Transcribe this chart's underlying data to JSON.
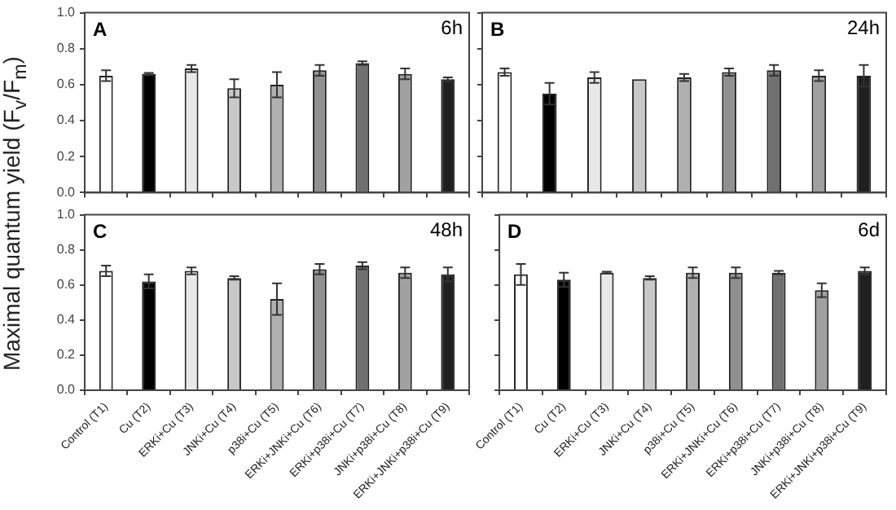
{
  "chart_data": [
    {
      "type": "bar",
      "ylabel": "Maximal quantum yield (F$_{v}$/F$_{m}$)",
      "annotations": [
        "A",
        "6h"
      ],
      "categories": [
        "Control (T1)",
        "Cu (T2)",
        "ERKi+Cu (T3)",
        "JNKi+Cu (T4)",
        "p38i+Cu (T5)",
        "ERKi+JNKi+Cu (T6)",
        "ERKi+p38i+Cu (T7)",
        "JNKi+p38i+Cu (T8)",
        "ERKi+JNKi+p38i+Cu (T9)"
      ],
      "values": [
        0.65,
        0.66,
        0.69,
        0.58,
        0.6,
        0.68,
        0.72,
        0.66,
        0.63
      ],
      "errors": [
        0.03,
        0.005,
        0.02,
        0.05,
        0.07,
        0.03,
        0.01,
        0.03,
        0.01
      ],
      "colors": [
        "#ffffff",
        "#000000",
        "#e8e8e8",
        "#c8c8c8",
        "#b0b0b0",
        "#909090",
        "#707070",
        "#a0a0a0",
        "#202020"
      ],
      "ylim": [
        0,
        1
      ],
      "yticks": [
        {
          "value": 0,
          "label": "0.0"
        },
        {
          "value": 0.2,
          "label": "0.2"
        },
        {
          "value": 0.4,
          "label": "0.4"
        },
        {
          "value": 0.6,
          "label": "0.6"
        },
        {
          "value": 0.8,
          "label": "0.8"
        },
        {
          "value": 1,
          "label": "1.0"
        }
      ],
      "tick_labels": "y",
      "legend": false
    },
    {
      "type": "bar",
      "annotations": [
        "B",
        "24h"
      ],
      "categories": [
        "Control (T1)",
        "Cu (T2)",
        "ERKi+Cu (T3)",
        "JNKi+Cu (T4)",
        "p38i+Cu (T5)",
        "ERKi+JNKi+Cu (T6)",
        "ERKi+p38i+Cu (T7)",
        "JNKi+p38i+Cu (T8)",
        "ERKi+JNKi+p38i+Cu (T9)"
      ],
      "values": [
        0.67,
        0.55,
        0.64,
        0.63,
        0.64,
        0.67,
        0.68,
        0.65,
        0.65
      ],
      "errors": [
        0.02,
        0.06,
        0.03,
        null,
        0.02,
        0.02,
        0.03,
        0.03,
        0.06
      ],
      "colors": [
        "#ffffff",
        "#000000",
        "#e8e8e8",
        "#c8c8c8",
        "#b0b0b0",
        "#909090",
        "#707070",
        "#a0a0a0",
        "#202020"
      ],
      "ylim": [
        0,
        1
      ],
      "yticks": [
        0,
        0.2,
        0.4,
        0.6,
        0.8,
        1
      ],
      "tick_labels": false,
      "legend": false
    },
    {
      "type": "bar",
      "annotations": [
        "C",
        "48h"
      ],
      "categories": [
        "Control (T1)",
        "Cu (T2)",
        "ERKi+Cu (T3)",
        "JNKi+Cu (T4)",
        "p38i+Cu (T5)",
        "ERKi+JNKi+Cu (T6)",
        "ERKi+p38i+Cu (T7)",
        "JNKi+p38i+Cu (T8)",
        "ERKi+JNKi+p38i+Cu (T9)"
      ],
      "values": [
        0.68,
        0.62,
        0.68,
        0.64,
        0.52,
        0.69,
        0.71,
        0.67,
        0.66
      ],
      "errors": [
        0.03,
        0.04,
        0.02,
        0.01,
        0.09,
        0.03,
        0.02,
        0.03,
        0.04
      ],
      "colors": [
        "#ffffff",
        "#000000",
        "#e8e8e8",
        "#c8c8c8",
        "#b0b0b0",
        "#909090",
        "#707070",
        "#a0a0a0",
        "#202020"
      ],
      "ylim": [
        0,
        1
      ],
      "yticks": [
        {
          "value": 0,
          "label": "0.0"
        },
        {
          "value": 0.2,
          "label": "0.2"
        },
        {
          "value": 0.4,
          "label": "0.4"
        },
        {
          "value": 0.6,
          "label": "0.6"
        },
        {
          "value": 0.8,
          "label": "0.8"
        },
        {
          "value": 1,
          "label": "1.0"
        }
      ],
      "legend": false
    },
    {
      "type": "bar",
      "annotations": [
        "D",
        "6d"
      ],
      "categories": [
        "Control (T1)",
        "Cu (T2)",
        "ERKi+Cu (T3)",
        "JNKi+Cu (T4)",
        "p38i+Cu (T5)",
        "ERKi+JNKi+Cu (T6)",
        "ERKi+p38i+Cu (T7)",
        "JNKi+p38i+Cu (T8)",
        "ERKi+JNKi+p38i+Cu (T9)"
      ],
      "values": [
        0.66,
        0.63,
        0.67,
        0.64,
        0.67,
        0.67,
        0.67,
        0.57,
        0.68
      ],
      "errors": [
        0.06,
        0.04,
        0.005,
        0.01,
        0.03,
        0.03,
        0.01,
        0.04,
        0.02
      ],
      "colors": [
        "#ffffff",
        "#000000",
        "#e8e8e8",
        "#c8c8c8",
        "#b0b0b0",
        "#909090",
        "#707070",
        "#a0a0a0",
        "#202020"
      ],
      "ylim": [
        0,
        1
      ],
      "yticks": [
        0,
        0.2,
        0.4,
        0.6,
        0.8,
        1
      ],
      "tick_labels": "x",
      "legend": false
    }
  ]
}
